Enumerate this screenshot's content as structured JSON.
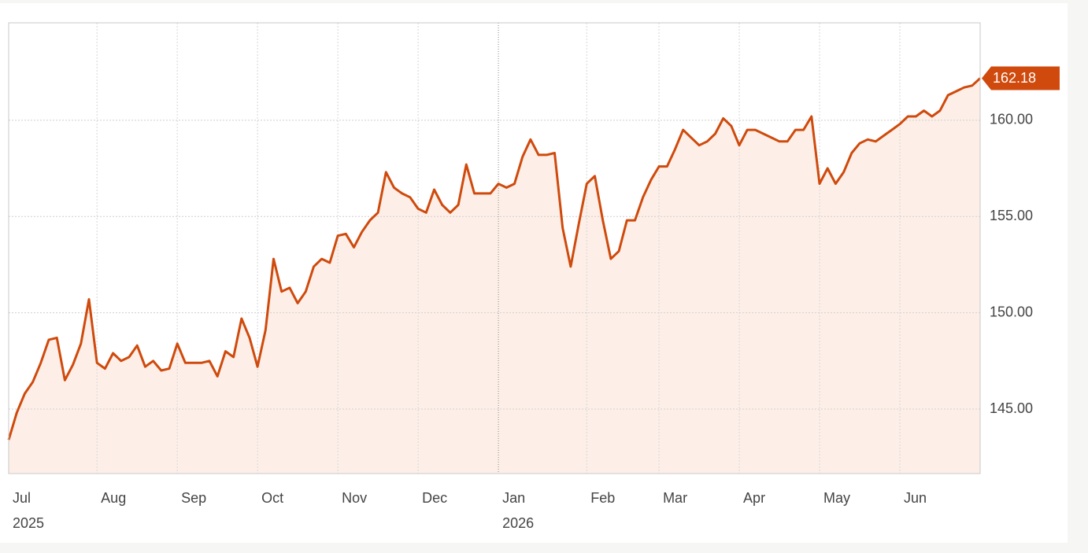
{
  "chart_data": {
    "type": "line",
    "categories": [
      "Jul",
      null,
      null,
      null,
      null,
      null,
      null,
      null,
      null,
      null,
      null,
      "Aug",
      null,
      null,
      null,
      null,
      null,
      null,
      null,
      null,
      null,
      "Sep",
      null,
      null,
      null,
      null,
      null,
      null,
      null,
      null,
      null,
      "Oct",
      null,
      null,
      null,
      null,
      null,
      null,
      null,
      null,
      null,
      "Nov",
      null,
      null,
      null,
      null,
      null,
      null,
      null,
      null,
      null,
      "Dec",
      null,
      null,
      null,
      null,
      null,
      null,
      null,
      null,
      null,
      "Jan",
      null,
      null,
      null,
      null,
      null,
      null,
      null,
      null,
      null,
      null,
      "Feb",
      null,
      null,
      null,
      null,
      null,
      null,
      null,
      null,
      "Mar",
      null,
      null,
      null,
      null,
      null,
      null,
      null,
      null,
      null,
      "Apr",
      null,
      null,
      null,
      null,
      null,
      null,
      null,
      null,
      null,
      "May",
      null,
      null,
      null,
      null,
      null,
      null,
      null,
      null,
      null,
      "Jun",
      null,
      null,
      null,
      null,
      null,
      null,
      null,
      null,
      null,
      null
    ],
    "year_labels": [
      "2025",
      null,
      null,
      null,
      null,
      null,
      null,
      null,
      null,
      null,
      null,
      null,
      null,
      null,
      null,
      null,
      null,
      null,
      null,
      null,
      null,
      null,
      null,
      null,
      null,
      null,
      null,
      null,
      null,
      null,
      null,
      null,
      null,
      null,
      null,
      null,
      null,
      null,
      null,
      null,
      null,
      null,
      null,
      null,
      null,
      null,
      null,
      null,
      null,
      null,
      null,
      null,
      null,
      null,
      null,
      null,
      null,
      null,
      null,
      null,
      null,
      "2026",
      null,
      null,
      null,
      null,
      null,
      null,
      null,
      null,
      null,
      null,
      null,
      null,
      null,
      null,
      null,
      null,
      null,
      null,
      null,
      null,
      null,
      null,
      null,
      null,
      null,
      null,
      null,
      null,
      null,
      null,
      null,
      null,
      null,
      null,
      null,
      null,
      null,
      null,
      null,
      null,
      null,
      null,
      null,
      null,
      null,
      null,
      null,
      null,
      null,
      null,
      null,
      null,
      null,
      null,
      null,
      null,
      null,
      null,
      null,
      null
    ],
    "values": [
      143.4,
      144.8,
      145.8,
      146.4,
      147.4,
      148.6,
      148.7,
      146.5,
      147.3,
      148.4,
      150.7,
      147.4,
      147.1,
      147.9,
      147.5,
      147.7,
      148.3,
      147.2,
      147.5,
      147.0,
      147.1,
      148.4,
      147.4,
      147.4,
      147.4,
      147.5,
      146.7,
      148.0,
      147.7,
      149.7,
      148.7,
      147.2,
      149.1,
      152.8,
      151.1,
      151.3,
      150.5,
      151.1,
      152.4,
      152.8,
      152.6,
      154.0,
      154.1,
      153.4,
      154.2,
      154.8,
      155.2,
      157.3,
      156.5,
      156.2,
      156.0,
      155.4,
      155.2,
      156.4,
      155.6,
      155.2,
      155.6,
      157.7,
      156.2,
      156.2,
      156.2,
      156.7,
      156.5,
      156.7,
      158.1,
      159.0,
      158.2,
      158.2,
      158.3,
      154.4,
      152.4,
      154.6,
      156.7,
      157.1,
      154.8,
      152.8,
      153.2,
      154.8,
      154.8,
      156.0,
      156.9,
      157.6,
      157.6,
      158.5,
      159.5,
      159.1,
      158.7,
      158.9,
      159.3,
      160.1,
      159.7,
      158.7,
      159.5,
      159.5,
      159.3,
      159.1,
      158.9,
      158.9,
      159.5,
      159.5,
      160.2,
      156.7,
      157.5,
      156.7,
      157.3,
      158.3,
      158.8,
      159.0,
      158.9,
      159.2,
      159.5,
      159.8,
      160.2,
      160.2,
      160.5,
      160.2,
      160.5,
      161.3,
      161.5,
      161.7,
      161.8,
      162.18
    ],
    "color": "#cf4a0c",
    "fill_color": "#fdefe8",
    "ylim": [
      141.65,
      165.06
    ],
    "yticks": [
      {
        "value": 145,
        "label": "145.00"
      },
      {
        "value": 150,
        "label": "150.00"
      },
      {
        "value": 155,
        "label": "155.00"
      },
      {
        "value": 160,
        "label": "160.00"
      }
    ],
    "grid": true
  }
}
